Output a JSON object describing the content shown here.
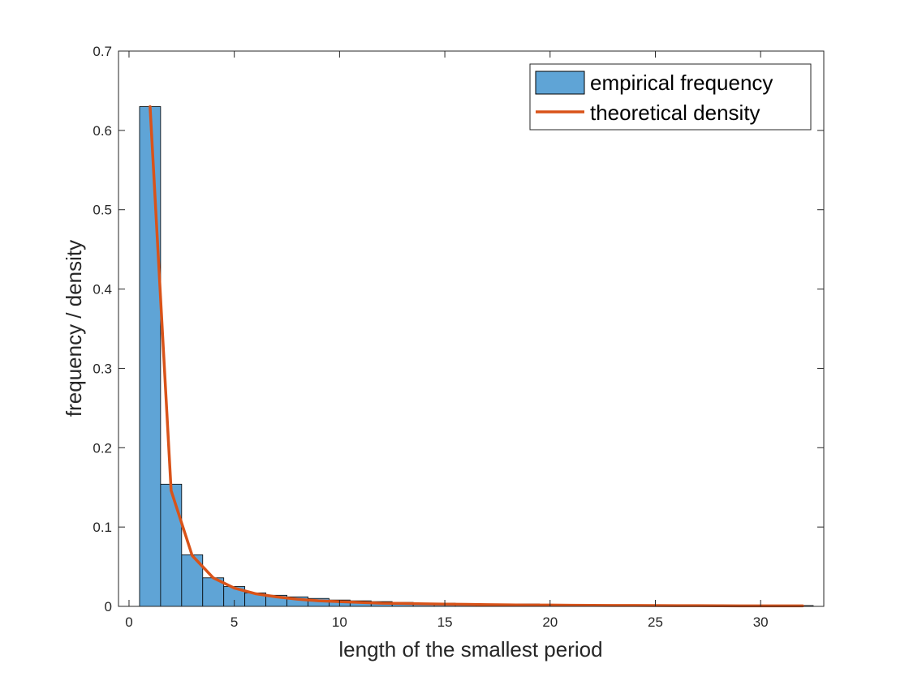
{
  "chart_data": {
    "type": "bar",
    "xlabel": "length of the smallest period",
    "ylabel": "frequency / density",
    "xlim": [
      -0.5,
      33
    ],
    "ylim": [
      0,
      0.7
    ],
    "xticks": [
      0,
      5,
      10,
      15,
      20,
      25,
      30
    ],
    "yticks": [
      0,
      0.1,
      0.2,
      0.3,
      0.4,
      0.5,
      0.6,
      0.7
    ],
    "ytick_labels": [
      "0",
      "0.1",
      "0.2",
      "0.3",
      "0.4",
      "0.5",
      "0.6",
      "0.7"
    ],
    "grid": false,
    "legend_position": "top-right",
    "series": [
      {
        "name": "empirical frequency",
        "type": "histogram",
        "color": "#5fa4d6",
        "edge_color": "#000000",
        "bin_width": 1,
        "x": [
          1,
          2,
          3,
          4,
          5,
          6,
          7,
          8,
          9,
          10,
          11,
          12,
          13,
          14,
          15,
          16,
          17,
          18,
          19,
          20,
          21,
          22,
          23,
          24,
          25,
          26,
          27,
          28,
          29,
          30,
          31,
          32
        ],
        "values": [
          0.63,
          0.154,
          0.065,
          0.036,
          0.025,
          0.017,
          0.014,
          0.012,
          0.01,
          0.008,
          0.007,
          0.006,
          0.005,
          0.004,
          0.004,
          0.003,
          0.003,
          0.003,
          0.003,
          0.002,
          0.002,
          0.002,
          0.002,
          0.002,
          0.002,
          0.002,
          0.001,
          0.001,
          0.001,
          0.001,
          0.001,
          0.001
        ]
      },
      {
        "name": "theoretical density",
        "type": "line",
        "color": "#d95319",
        "x": [
          1,
          2,
          3,
          4,
          5,
          6,
          7,
          8,
          9,
          10,
          11,
          12,
          13,
          14,
          15,
          16,
          17,
          18,
          19,
          20,
          21,
          22,
          23,
          24,
          25,
          26,
          27,
          28,
          29,
          30,
          31,
          32
        ],
        "values": [
          0.63,
          0.146,
          0.064,
          0.036,
          0.023,
          0.016,
          0.012,
          0.009,
          0.007,
          0.006,
          0.005,
          0.004,
          0.0037,
          0.0032,
          0.0028,
          0.0025,
          0.0022,
          0.0019,
          0.0017,
          0.0016,
          0.0014,
          0.0013,
          0.0012,
          0.0011,
          0.001,
          0.0009,
          0.0009,
          0.0008,
          0.0007,
          0.0007,
          0.0006,
          0.0006
        ]
      }
    ]
  }
}
